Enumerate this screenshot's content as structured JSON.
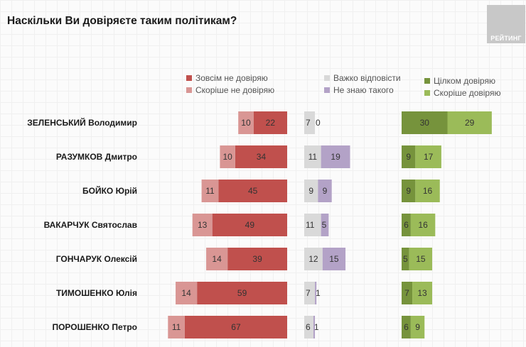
{
  "title": "Наскільки Ви довіряєте таким політикам?",
  "logo_text": "РЕЙТИНГ",
  "colors": {
    "fully_distrust": "#c0504d",
    "rather_distrust": "#d99694",
    "hard_to_say": "#d9d9d9",
    "dont_know": "#b3a2c7",
    "fully_trust": "#76933c",
    "rather_trust": "#9bbb59"
  },
  "legend": [
    {
      "key": "fully_distrust",
      "label": "Зовсім не довіряю"
    },
    {
      "key": "rather_distrust",
      "label": "Скоріше не довіряю"
    },
    {
      "key": "hard_to_say",
      "label": "Важко відповісти"
    },
    {
      "key": "dont_know",
      "label": "Не знаю такого"
    },
    {
      "key": "fully_trust",
      "label": "Цілком довіряю"
    },
    {
      "key": "rather_trust",
      "label": "Скоріше довіряю"
    }
  ],
  "chart_data": {
    "type": "bar",
    "title": "Наскільки Ви довіряєте таким політикам?",
    "unit": "%",
    "categories": [
      "ЗЕЛЕНСЬКИЙ Володимир",
      "РАЗУМКОВ Дмитро",
      "БОЙКО Юрій",
      "ВАКАРЧУК Святослав",
      "ГОНЧАРУК Олексій",
      "ТИМОШЕНКО Юлія",
      "ПОРОШЕНКО Петро"
    ],
    "series": [
      {
        "key": "rather_distrust",
        "name": "Скоріше не довіряю",
        "group": "distrust",
        "values": [
          10,
          10,
          11,
          13,
          14,
          14,
          11
        ]
      },
      {
        "key": "fully_distrust",
        "name": "Зовсім не довіряю",
        "group": "distrust",
        "values": [
          22,
          34,
          45,
          49,
          39,
          59,
          67
        ]
      },
      {
        "key": "hard_to_say",
        "name": "Важко відповісти",
        "group": "neutral",
        "values": [
          7,
          11,
          9,
          11,
          12,
          7,
          6
        ]
      },
      {
        "key": "dont_know",
        "name": "Не знаю такого",
        "group": "neutral",
        "values": [
          0,
          19,
          9,
          5,
          15,
          1,
          1
        ]
      },
      {
        "key": "fully_trust",
        "name": "Цілком довіряю",
        "group": "trust",
        "values": [
          30,
          9,
          9,
          6,
          5,
          7,
          6
        ]
      },
      {
        "key": "rather_trust",
        "name": "Скоріше довіряю",
        "group": "trust",
        "values": [
          29,
          17,
          16,
          16,
          15,
          13,
          9
        ]
      }
    ],
    "xlabel": "",
    "ylabel": "",
    "grid": false,
    "legend_position": "top"
  }
}
